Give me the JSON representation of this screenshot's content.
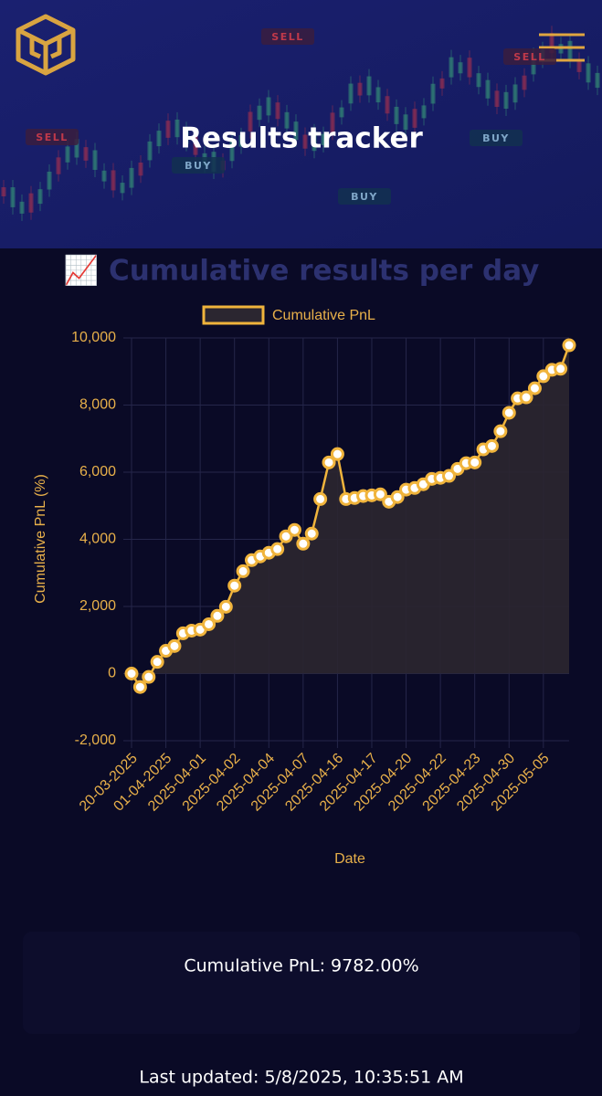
{
  "header": {
    "title": "Results tracker",
    "badges": [
      "SELL",
      "SELL",
      "SELL",
      "BUY",
      "BUY",
      "BUY"
    ]
  },
  "chart_data": {
    "type": "line",
    "title": "📈 Cumulative results per day",
    "x_label": "Date",
    "y_label": "Cumulative PnL (%)",
    "categories": [
      "20-03-2025",
      null,
      null,
      null,
      "01-04-2025",
      null,
      null,
      null,
      "2025-04-01",
      null,
      null,
      null,
      "2025-04-02",
      null,
      null,
      null,
      "2025-04-04",
      null,
      null,
      null,
      "2025-04-07",
      null,
      null,
      null,
      "2025-04-16",
      null,
      null,
      null,
      "2025-04-17",
      null,
      null,
      null,
      "2025-04-20",
      null,
      null,
      null,
      "2025-04-22",
      null,
      null,
      null,
      "2025-04-23",
      null,
      null,
      null,
      "2025-04-30",
      null,
      null,
      null,
      "2025-05-05",
      null,
      null,
      null
    ],
    "series": [
      {
        "name": "Cumulative PnL",
        "color": "#f0b43c",
        "values": [
          0,
          -400,
          -100,
          350,
          680,
          820,
          1200,
          1280,
          1310,
          1470,
          1720,
          1990,
          2620,
          3050,
          3380,
          3490,
          3600,
          3710,
          4090,
          4280,
          3870,
          4170,
          5200,
          6290,
          6540,
          5200,
          5230,
          5290,
          5310,
          5340,
          5120,
          5260,
          5480,
          5530,
          5640,
          5800,
          5830,
          5890,
          6100,
          6270,
          6290,
          6680,
          6780,
          7220,
          7770,
          8200,
          8230,
          8500,
          8860,
          9050,
          9080,
          9782
        ]
      }
    ],
    "ylim": [
      -2000,
      10000
    ],
    "yticks": [
      {
        "value": -2000,
        "label": "-2,000"
      },
      0,
      {
        "value": 2000,
        "label": "2,000"
      },
      {
        "value": 4000,
        "label": "4,000"
      },
      {
        "value": 6000,
        "label": "6,000"
      },
      {
        "value": 8000,
        "label": "8,000"
      },
      {
        "value": 10000,
        "label": "10,000"
      }
    ],
    "grid": true,
    "fill": true,
    "legend": "top"
  },
  "summary": "Cumulative PnL: 9782.00%",
  "footer": "Last updated: 5/8/2025, 10:35:51 AM"
}
